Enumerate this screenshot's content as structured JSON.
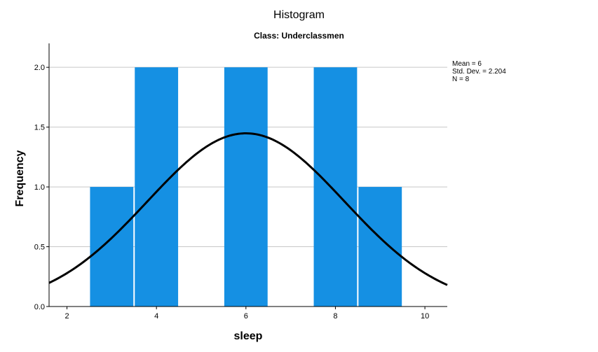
{
  "chart_data": {
    "type": "bar",
    "title": "Histogram",
    "subtitle": "Class: Underclassmen",
    "xlabel": "sleep",
    "ylabel": "Frequency",
    "bins": [
      {
        "start": 2.5,
        "end": 3.5,
        "value": 1
      },
      {
        "start": 3.5,
        "end": 4.5,
        "value": 2
      },
      {
        "start": 4.5,
        "end": 5.5,
        "value": 0
      },
      {
        "start": 5.5,
        "end": 6.5,
        "value": 2
      },
      {
        "start": 6.5,
        "end": 7.5,
        "value": 0
      },
      {
        "start": 7.5,
        "end": 8.5,
        "value": 2
      },
      {
        "start": 8.5,
        "end": 9.5,
        "value": 1
      }
    ],
    "xlim": [
      1.6,
      10.5
    ],
    "ylim": [
      0,
      2.2
    ],
    "xticks": [
      2,
      4,
      6,
      8,
      10
    ],
    "yticks": [
      0.0,
      0.5,
      1.0,
      1.5,
      2.0
    ],
    "ytick_labels": [
      "0.0",
      "0.5",
      "1.0",
      "1.5",
      "2.0"
    ],
    "grid": "horizontal",
    "bar_color": "#1590e3",
    "curve_color": "#000000",
    "normal_curve": {
      "mean": 6,
      "std": 2.204,
      "n": 8,
      "bin_width": 1
    },
    "stats": [
      "Mean = 6",
      "Std. Dev. = 2.204",
      "N = 8"
    ]
  }
}
